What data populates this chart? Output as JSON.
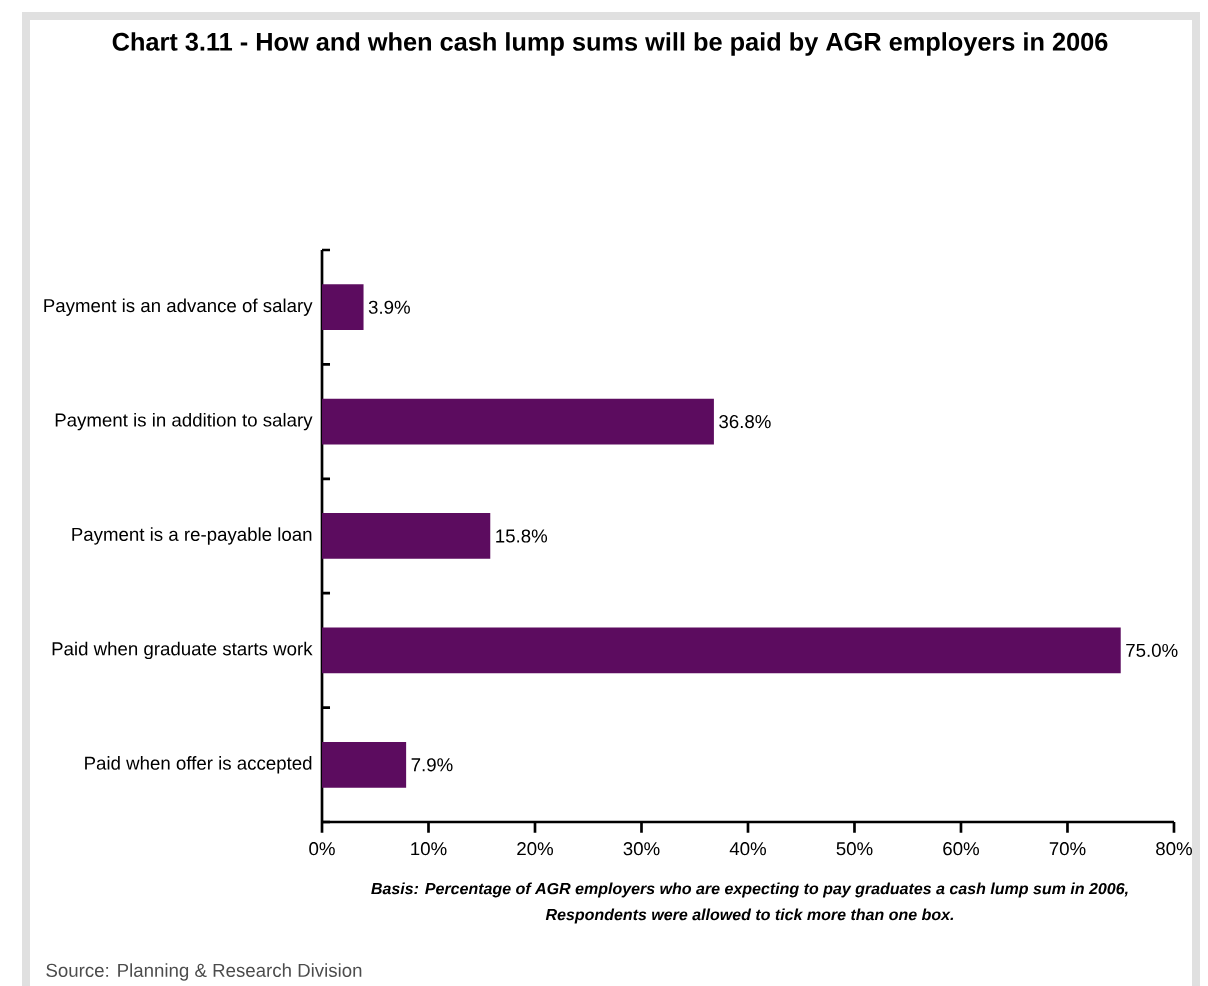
{
  "chart_data": {
    "type": "bar",
    "orientation": "horizontal",
    "title": "Chart 3.11 - How and when cash lump sums will be paid by AGR employers in 2006",
    "categories": [
      "Payment is an advance of salary",
      "Payment is in addition to salary",
      "Payment is a re-payable loan",
      "Paid when graduate starts work",
      "Paid when offer is accepted"
    ],
    "values": [
      3.9,
      36.8,
      15.8,
      75.0,
      7.9
    ],
    "value_labels": [
      "3.9%",
      "36.8%",
      "15.8%",
      "75.0%",
      "7.9%"
    ],
    "color": "#5c0c5f",
    "xlim": [
      0,
      80
    ],
    "xticks": [
      {
        "value": 0,
        "label": "0%"
      },
      {
        "value": 10,
        "label": "10%"
      },
      {
        "value": 20,
        "label": "20%"
      },
      {
        "value": 30,
        "label": "30%"
      },
      {
        "value": 40,
        "label": "40%"
      },
      {
        "value": 50,
        "label": "50%"
      },
      {
        "value": 60,
        "label": "60%"
      },
      {
        "value": 70,
        "label": "70%"
      },
      {
        "value": 80,
        "label": "80%"
      }
    ],
    "grid": false,
    "annotations": [
      "Basis: Percentage of AGR employers who are expecting to pay graduates a cash lump sum in 2006,",
      "Respondents were allowed to tick more than one box.",
      "Source: Planning & Research Division"
    ]
  }
}
